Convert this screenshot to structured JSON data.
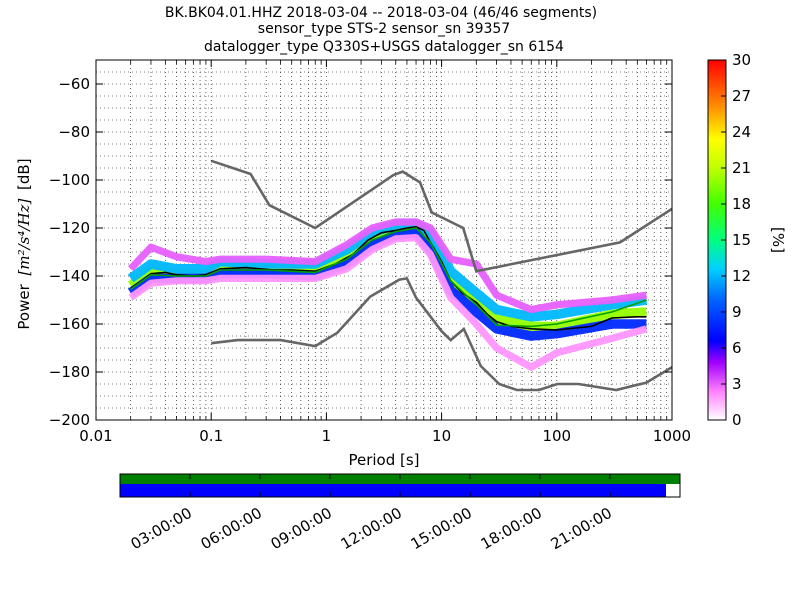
{
  "figure": {
    "title_lines": [
      "BK.BK04.01.HHZ   2018-03-04 -- 2018-03-04  (46/46 segments)",
      "sensor_type STS-2 sensor_sn 39357",
      "datalogger_type Q330S+USGS datalogger_sn 6154"
    ]
  },
  "chart_data": {
    "type": "heatmap",
    "xlabel": "Period [s]",
    "ylabel_prefix": "Power",
    "ylabel_unit": "[m²/s⁴/Hz]",
    "ylabel_suffix": "[dB]",
    "xscale": "log",
    "xlim": [
      0.01,
      1000
    ],
    "ylim": [
      -200,
      -50
    ],
    "xticks": [
      {
        "v": 0.01,
        "label": "0.01"
      },
      {
        "v": 0.1,
        "label": "0.1"
      },
      {
        "v": 1,
        "label": "1"
      },
      {
        "v": 10,
        "label": "10"
      },
      {
        "v": 100,
        "label": "100"
      },
      {
        "v": 1000,
        "label": "1000"
      }
    ],
    "yticks": [
      {
        "v": -60,
        "label": "−60"
      },
      {
        "v": -80,
        "label": "−80"
      },
      {
        "v": -100,
        "label": "−100"
      },
      {
        "v": -120,
        "label": "−120"
      },
      {
        "v": -140,
        "label": "−140"
      },
      {
        "v": -160,
        "label": "−160"
      },
      {
        "v": -180,
        "label": "−180"
      },
      {
        "v": -200,
        "label": "−200"
      }
    ],
    "grid": true,
    "colorbar": {
      "label": "[%]",
      "min": 0,
      "max": 30,
      "ticks": [
        {
          "v": 0,
          "label": "0"
        },
        {
          "v": 3,
          "label": "3"
        },
        {
          "v": 6,
          "label": "6"
        },
        {
          "v": 9,
          "label": "9"
        },
        {
          "v": 12,
          "label": "12"
        },
        {
          "v": 15,
          "label": "15"
        },
        {
          "v": 18,
          "label": "18"
        },
        {
          "v": 21,
          "label": "21"
        },
        {
          "v": 24,
          "label": "24"
        },
        {
          "v": 27,
          "label": "27"
        },
        {
          "v": 30,
          "label": "30"
        }
      ]
    },
    "high_noise_model": [
      [
        0.1,
        -92
      ],
      [
        0.22,
        -97.5
      ],
      [
        0.32,
        -110.5
      ],
      [
        0.8,
        -120
      ],
      [
        3.8,
        -98
      ],
      [
        4.6,
        -96.5
      ],
      [
        6.5,
        -101
      ],
      [
        8.2,
        -113.5
      ],
      [
        15.4,
        -120
      ],
      [
        20,
        -138
      ],
      [
        354,
        -126
      ],
      [
        1000,
        -112
      ]
    ],
    "low_noise_model": [
      [
        0.1,
        -168
      ],
      [
        0.17,
        -166.7
      ],
      [
        0.4,
        -166.7
      ],
      [
        0.8,
        -169.2
      ],
      [
        1.24,
        -163.7
      ],
      [
        2.4,
        -148.6
      ],
      [
        4.3,
        -141.5
      ],
      [
        5,
        -141
      ],
      [
        6,
        -149
      ],
      [
        10,
        -163
      ],
      [
        12,
        -166.7
      ],
      [
        15.6,
        -162.1
      ],
      [
        21.9,
        -177.5
      ],
      [
        31.6,
        -185
      ],
      [
        45,
        -187.5
      ],
      [
        70,
        -187.5
      ],
      [
        101,
        -185
      ],
      [
        154,
        -185
      ],
      [
        328,
        -187.5
      ],
      [
        600,
        -184.4
      ],
      [
        1000,
        -178
      ]
    ],
    "series": [
      {
        "style": "mean",
        "color": "#000000",
        "points": [
          [
            0.02,
            -145
          ],
          [
            0.025,
            -142
          ],
          [
            0.03,
            -139
          ],
          [
            0.04,
            -138.5
          ],
          [
            0.05,
            -139.5
          ],
          [
            0.07,
            -140
          ],
          [
            0.09,
            -139.5
          ],
          [
            0.12,
            -137
          ],
          [
            0.2,
            -136.5
          ],
          [
            0.35,
            -137.5
          ],
          [
            0.5,
            -137.5
          ],
          [
            0.8,
            -138
          ],
          [
            1.2,
            -135
          ],
          [
            1.7,
            -131
          ],
          [
            2.3,
            -125
          ],
          [
            3,
            -122
          ],
          [
            4,
            -121
          ],
          [
            5,
            -120
          ],
          [
            6,
            -119.5
          ],
          [
            7,
            -121
          ],
          [
            8,
            -126
          ],
          [
            10,
            -134
          ],
          [
            12,
            -142
          ],
          [
            15,
            -147
          ],
          [
            20,
            -151
          ],
          [
            25,
            -156
          ],
          [
            30,
            -159
          ],
          [
            40,
            -161
          ],
          [
            60,
            -162
          ],
          [
            100,
            -162.5
          ],
          [
            200,
            -161
          ],
          [
            300,
            -157.5
          ],
          [
            500,
            -157
          ],
          [
            600,
            -157
          ]
        ]
      },
      {
        "style": "mode",
        "color": "#00a000",
        "points": [
          [
            0.02,
            -145.5
          ],
          [
            0.03,
            -139.5
          ],
          [
            0.05,
            -140
          ],
          [
            0.09,
            -140
          ],
          [
            0.12,
            -137.5
          ],
          [
            0.3,
            -137.5
          ],
          [
            0.8,
            -138.5
          ],
          [
            1.5,
            -133
          ],
          [
            2.5,
            -125
          ],
          [
            4,
            -121.5
          ],
          [
            6,
            -120
          ],
          [
            8,
            -126
          ],
          [
            12,
            -142
          ],
          [
            20,
            -152
          ],
          [
            30,
            -160.5
          ],
          [
            60,
            -161
          ],
          [
            100,
            -160
          ],
          [
            300,
            -155
          ],
          [
            600,
            -150
          ]
        ]
      }
    ],
    "density_bands": [
      {
        "center": [
          [
            0.02,
            -144
          ],
          [
            0.03,
            -138
          ],
          [
            0.05,
            -139
          ],
          [
            0.09,
            -139
          ],
          [
            0.12,
            -136
          ],
          [
            0.3,
            -137
          ],
          [
            0.8,
            -137
          ],
          [
            1.5,
            -132
          ],
          [
            2.5,
            -124
          ],
          [
            4,
            -120.5
          ],
          [
            6,
            -119.5
          ],
          [
            8,
            -125
          ],
          [
            12,
            -142
          ],
          [
            20,
            -151
          ],
          [
            30,
            -158
          ],
          [
            60,
            -161
          ],
          [
            100,
            -161
          ],
          [
            300,
            -156
          ],
          [
            600,
            -155
          ]
        ],
        "thickness": 4,
        "percent": 20
      },
      {
        "center": [
          [
            0.02,
            -141
          ],
          [
            0.03,
            -135
          ],
          [
            0.05,
            -137
          ],
          [
            0.09,
            -137
          ],
          [
            0.12,
            -134
          ],
          [
            0.3,
            -135
          ],
          [
            0.8,
            -135
          ],
          [
            1.5,
            -129
          ],
          [
            2.5,
            -122
          ],
          [
            4,
            -118.5
          ],
          [
            6,
            -118
          ],
          [
            8,
            -122
          ],
          [
            12,
            -138
          ],
          [
            20,
            -147
          ],
          [
            30,
            -154
          ],
          [
            60,
            -157
          ],
          [
            100,
            -156
          ],
          [
            300,
            -152
          ],
          [
            600,
            -150
          ]
        ],
        "thickness": 4,
        "percent": 12
      },
      {
        "center": [
          [
            0.02,
            -147
          ],
          [
            0.03,
            -141
          ],
          [
            0.05,
            -141
          ],
          [
            0.09,
            -141
          ],
          [
            0.12,
            -139
          ],
          [
            0.3,
            -139
          ],
          [
            0.8,
            -140
          ],
          [
            1.5,
            -135
          ],
          [
            2.5,
            -127
          ],
          [
            4,
            -123
          ],
          [
            6,
            -122
          ],
          [
            8,
            -129
          ],
          [
            12,
            -146
          ],
          [
            20,
            -155
          ],
          [
            30,
            -162
          ],
          [
            60,
            -165
          ],
          [
            100,
            -164
          ],
          [
            300,
            -160
          ],
          [
            600,
            -160
          ]
        ],
        "thickness": 4,
        "percent": 8
      },
      {
        "center": [
          [
            0.02,
            -137
          ],
          [
            0.03,
            -128
          ],
          [
            0.05,
            -132
          ],
          [
            0.09,
            -134
          ],
          [
            0.12,
            -133
          ],
          [
            0.3,
            -133
          ],
          [
            0.8,
            -134
          ],
          [
            1.5,
            -127
          ],
          [
            2.5,
            -120
          ],
          [
            4,
            -117.5
          ],
          [
            6,
            -117.5
          ],
          [
            8,
            -120
          ],
          [
            12,
            -133
          ],
          [
            20,
            -135
          ],
          [
            30,
            -148
          ],
          [
            60,
            -154
          ],
          [
            100,
            -152
          ],
          [
            300,
            -150
          ],
          [
            600,
            -148
          ]
        ],
        "thickness": 3,
        "percent": 3
      },
      {
        "center": [
          [
            0.02,
            -149
          ],
          [
            0.03,
            -143
          ],
          [
            0.05,
            -142
          ],
          [
            0.09,
            -142
          ],
          [
            0.12,
            -141
          ],
          [
            0.3,
            -141
          ],
          [
            0.8,
            -141
          ],
          [
            1.5,
            -137
          ],
          [
            2.5,
            -129
          ],
          [
            4,
            -124.5
          ],
          [
            6,
            -124
          ],
          [
            8,
            -131
          ],
          [
            12,
            -149
          ],
          [
            20,
            -160
          ],
          [
            30,
            -170
          ],
          [
            60,
            -178
          ],
          [
            100,
            -172
          ],
          [
            300,
            -166
          ],
          [
            600,
            -162
          ]
        ],
        "thickness": 3,
        "percent": 2
      }
    ]
  },
  "timeline": {
    "ticks": [
      "03:00:00",
      "06:00:00",
      "09:00:00",
      "12:00:00",
      "15:00:00",
      "18:00:00",
      "21:00:00"
    ],
    "data_fraction": 0.975,
    "bar_colors": {
      "top": "#008000",
      "bottom": "#0000ff"
    }
  }
}
